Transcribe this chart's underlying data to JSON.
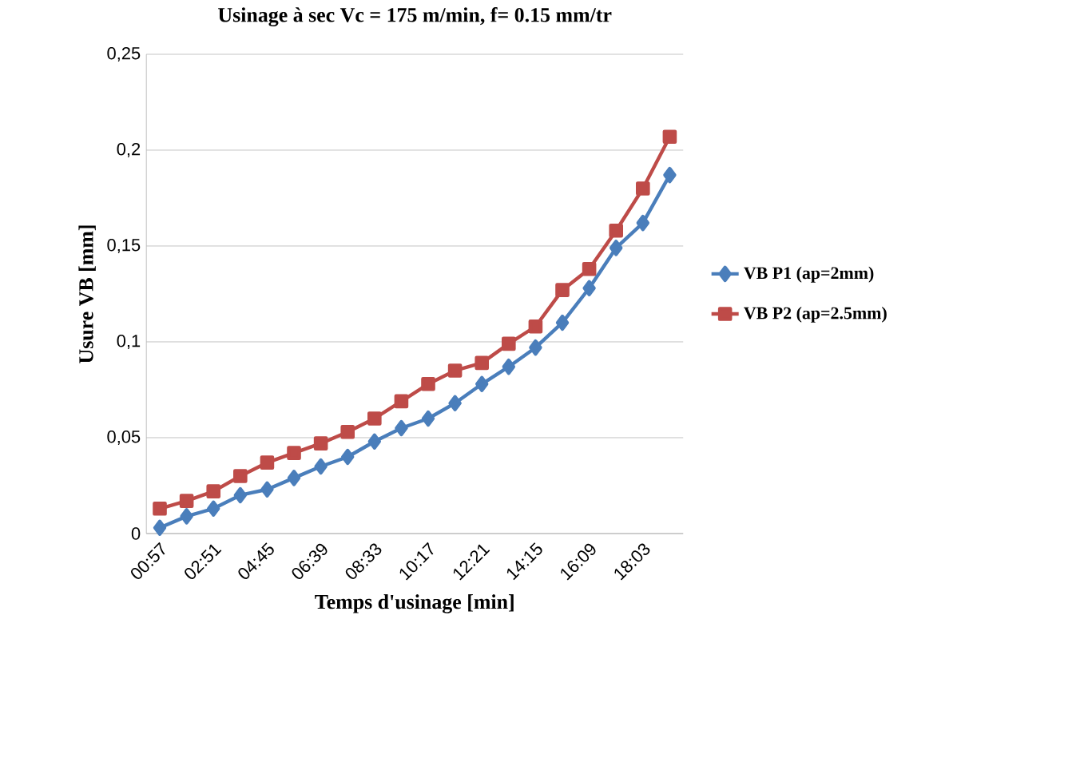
{
  "chart_data": {
    "type": "line",
    "title": "Usinage à sec Vc = 175 m/min, f= 0.15 mm/tr",
    "xlabel": "Temps d'usinage [min]",
    "ylabel": "Usure VB [mm]",
    "categories": [
      "00:57",
      null,
      "02:51",
      null,
      "04:45",
      null,
      "06:39",
      null,
      "08:33",
      null,
      "10:17",
      null,
      "12:21",
      null,
      "14:15",
      null,
      "16:09",
      null,
      "18:03",
      null
    ],
    "series": [
      {
        "name": "VB P1 (ap=2mm)",
        "color": "#4a7ebb",
        "marker": "diamond",
        "values": [
          0.003,
          0.009,
          0.013,
          0.02,
          0.023,
          0.029,
          0.035,
          0.04,
          0.048,
          0.055,
          0.06,
          0.068,
          0.078,
          0.087,
          0.097,
          0.11,
          0.128,
          0.149,
          0.162,
          0.187
        ]
      },
      {
        "name": "VB P2 (ap=2.5mm)",
        "color": "#be4b48",
        "marker": "square",
        "values": [
          0.013,
          0.017,
          0.022,
          0.03,
          0.037,
          0.042,
          0.047,
          0.053,
          0.06,
          0.069,
          0.078,
          0.085,
          0.089,
          0.099,
          0.108,
          0.127,
          0.138,
          0.158,
          0.18,
          0.207
        ]
      }
    ],
    "ylim": [
      0,
      0.25
    ],
    "yticks": [
      0,
      {
        "value": 0.05,
        "label": "0,05"
      },
      {
        "value": 0.1,
        "label": "0,1"
      },
      {
        "value": 0.15,
        "label": "0,15"
      },
      {
        "value": 0.2,
        "label": "0,2"
      },
      {
        "value": 0.25,
        "label": "0,25"
      }
    ],
    "grid": "y",
    "legend": "right",
    "line_style": "solid"
  }
}
